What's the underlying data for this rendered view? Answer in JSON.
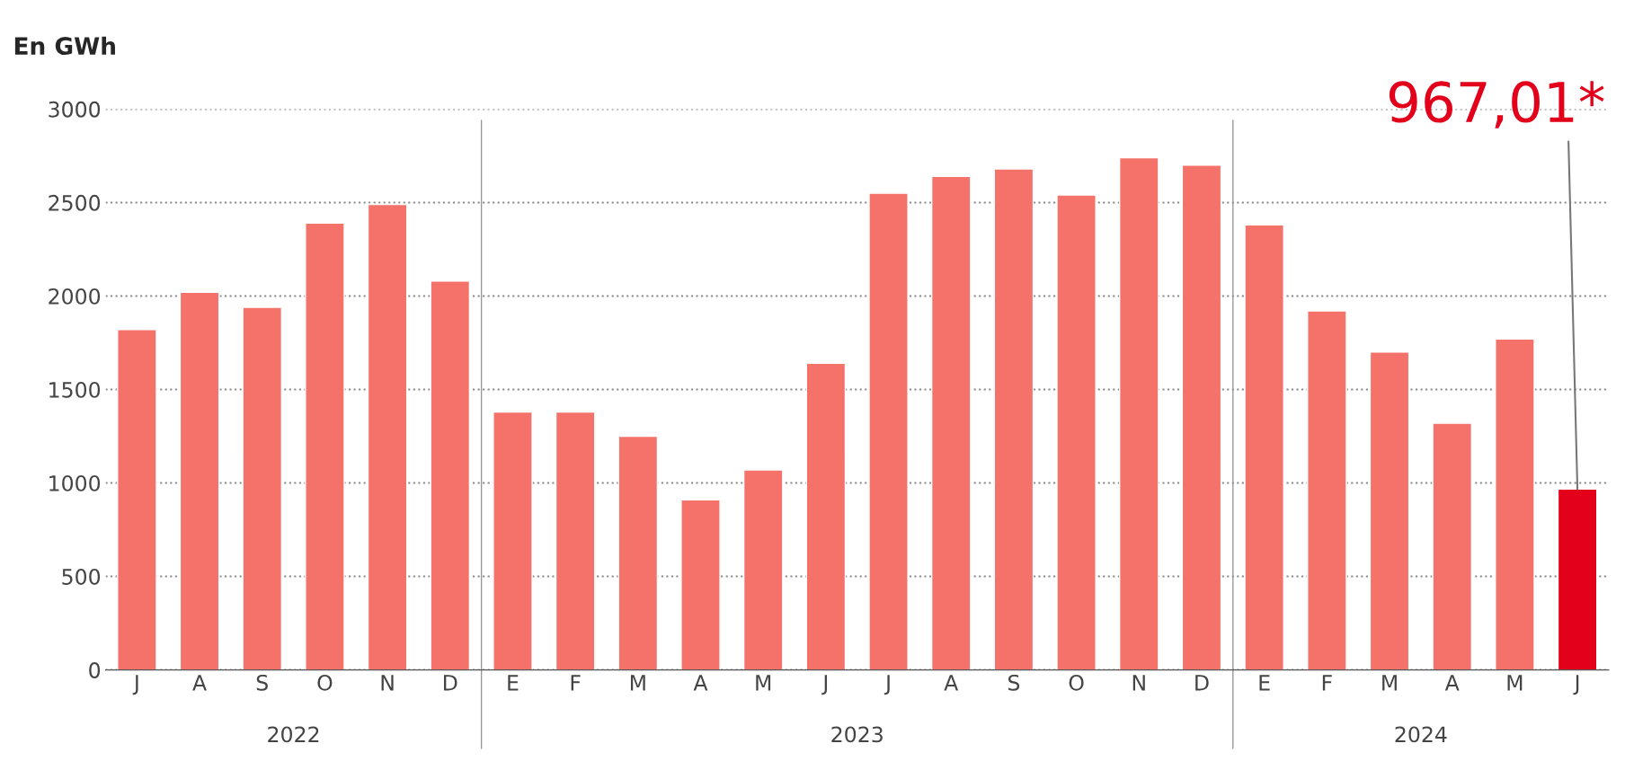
{
  "chart_data": {
    "type": "bar",
    "ylabel": "En GWh",
    "categories": [
      "J",
      "A",
      "S",
      "O",
      "N",
      "D",
      "E",
      "F",
      "M",
      "A",
      "M",
      "J",
      "J",
      "A",
      "S",
      "O",
      "N",
      "D",
      "E",
      "F",
      "M",
      "A",
      "M",
      "J"
    ],
    "values": [
      1820,
      2020,
      1940,
      2390,
      2490,
      2080,
      1380,
      1380,
      1250,
      910,
      1070,
      1640,
      2550,
      2640,
      2680,
      2540,
      2740,
      2700,
      2380,
      1920,
      1700,
      1320,
      1770,
      967.01
    ],
    "colors": [
      "#f4726a",
      "#f4726a",
      "#f4726a",
      "#f4726a",
      "#f4726a",
      "#f4726a",
      "#f4726a",
      "#f4726a",
      "#f4726a",
      "#f4726a",
      "#f4726a",
      "#f4726a",
      "#f4726a",
      "#f4726a",
      "#f4726a",
      "#f4726a",
      "#f4726a",
      "#f4726a",
      "#f4726a",
      "#f4726a",
      "#f4726a",
      "#f4726a",
      "#f4726a",
      "#e2001a"
    ],
    "ylim": [
      0,
      3000
    ],
    "yticks": [
      0,
      500,
      1000,
      1500,
      2000,
      2500,
      3000
    ],
    "grid": "y",
    "value_labels": [
      null,
      null,
      null,
      null,
      null,
      null,
      null,
      null,
      null,
      null,
      null,
      null,
      null,
      null,
      null,
      null,
      null,
      null,
      null,
      null,
      null,
      null,
      null,
      "967,01*"
    ],
    "annotations": [
      "2022",
      "2023",
      "2024"
    ]
  }
}
